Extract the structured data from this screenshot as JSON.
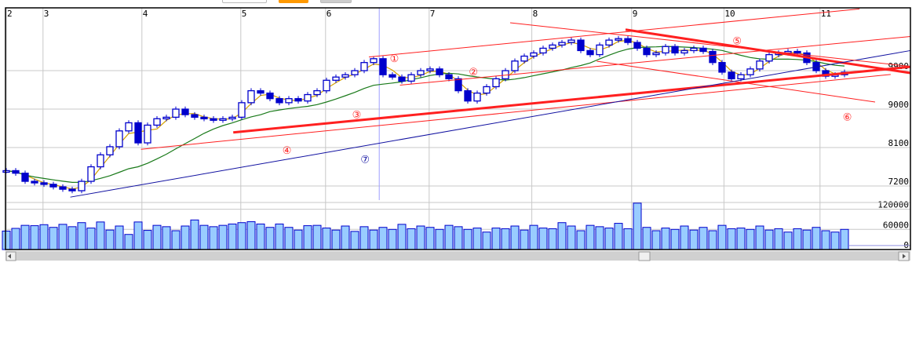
{
  "toolbar": {
    "buttons": [
      {
        "color": "#ffffff"
      },
      {
        "color": "#ff9900"
      },
      {
        "color": "#c0c0c0"
      }
    ]
  },
  "chart_data": {
    "type": "candlestick",
    "price_axis": {
      "ticks": [
        7200,
        8100,
        9000,
        9900
      ],
      "range": [
        6870,
        11370
      ]
    },
    "volume_axis": {
      "ticks": [
        0,
        60000,
        120000
      ],
      "range": [
        0,
        140000
      ]
    },
    "grid": true,
    "month_ticks": [
      {
        "label": "2",
        "at_index": 0
      },
      {
        "label": "3",
        "at_index": 3.9
      },
      {
        "label": "4",
        "at_index": 14.4
      },
      {
        "label": "5",
        "at_index": 24.9
      },
      {
        "label": "6",
        "at_index": 33.9
      },
      {
        "label": "7",
        "at_index": 44.9
      },
      {
        "label": "8",
        "at_index": 55.8
      },
      {
        "label": "9",
        "at_index": 66.4
      },
      {
        "label": "10",
        "at_index": 76.2
      },
      {
        "label": "11",
        "at_index": 86.4
      }
    ],
    "closes": [
      7560,
      7500,
      7310,
      7275,
      7240,
      7180,
      7125,
      7090,
      7310,
      7650,
      7930,
      8120,
      8490,
      8680,
      8210,
      8625,
      8775,
      8810,
      9000,
      8870,
      8810,
      8775,
      8740,
      8775,
      8810,
      9150,
      9430,
      9375,
      9245,
      9150,
      9245,
      9190,
      9340,
      9430,
      9675,
      9750,
      9805,
      9900,
      10090,
      10180,
      9805,
      9750,
      9655,
      9805,
      9900,
      9940,
      9805,
      9710,
      9430,
      9190,
      9375,
      9525,
      9710,
      9900,
      10125,
      10240,
      10315,
      10425,
      10500,
      10560,
      10615,
      10370,
      10275,
      10500,
      10615,
      10650,
      10560,
      10425,
      10275,
      10315,
      10465,
      10315,
      10370,
      10425,
      10350,
      10090,
      9865,
      9710,
      9805,
      9940,
      10125,
      10275,
      10315,
      10350,
      10315,
      10090,
      9900,
      9770,
      9805,
      9865
    ],
    "volumes": [
      55000,
      63000,
      72000,
      71000,
      74000,
      66000,
      75000,
      68000,
      80000,
      64000,
      82000,
      58000,
      70000,
      45000,
      82000,
      57000,
      72000,
      68000,
      56000,
      70000,
      88000,
      72000,
      68000,
      72000,
      76000,
      80000,
      83000,
      76000,
      66000,
      76000,
      66000,
      58000,
      71000,
      72000,
      64000,
      58000,
      70000,
      54000,
      68000,
      58000,
      66000,
      60000,
      75000,
      62000,
      70000,
      66000,
      60000,
      72000,
      68000,
      60000,
      64000,
      52000,
      64000,
      62000,
      70000,
      58000,
      72000,
      64000,
      62000,
      80000,
      70000,
      56000,
      72000,
      68000,
      64000,
      78000,
      62000,
      138000,
      66000,
      56000,
      64000,
      60000,
      70000,
      58000,
      66000,
      56000,
      72000,
      62000,
      64000,
      60000,
      70000,
      58000,
      62000,
      52000,
      62000,
      58000,
      66000,
      56000,
      52000,
      60000
    ],
    "moving_averages": [
      {
        "period": 3,
        "color": "#d4a000"
      },
      {
        "period": 14,
        "color": "#1a7a1a"
      }
    ],
    "trendlines": [
      {
        "label": "①",
        "color": "#ff2020",
        "width": 1,
        "from": [
          38.5,
          10220
        ],
        "to": [
          90.6,
          11345
        ],
        "label_at": [
          41.2,
          10190
        ]
      },
      {
        "label": "②",
        "color": "#ff2020",
        "width": 1,
        "from": [
          41.8,
          9560
        ],
        "to": [
          96,
          10700
        ],
        "label_at": [
          49.6,
          9880
        ]
      },
      {
        "label": "③",
        "color": "#ff2020",
        "width": 3,
        "from": [
          24.1,
          8455
        ],
        "to": [
          96,
          9990
        ],
        "label_at": [
          37.2,
          8880
        ]
      },
      {
        "label": "④",
        "color": "#ff2020",
        "width": 1,
        "from": [
          14.3,
          8060
        ],
        "to": [
          93.9,
          9810
        ],
        "label_at": [
          29.8,
          8050
        ]
      },
      {
        "label": "⑤",
        "color": "#ff2020",
        "width": 3,
        "from": [
          65.75,
          10860
        ],
        "to": [
          96,
          9845
        ],
        "label_at": [
          77.6,
          10610
        ]
      },
      {
        "label": "⑥",
        "color": "#ff2020",
        "width": 1,
        "from": [
          62.7,
          10120
        ],
        "to": [
          92.25,
          9165
        ],
        "label_at": [
          89.3,
          8830
        ]
      },
      {
        "label": "⑦",
        "color": "#1010a0",
        "width": 1,
        "from": [
          6.8,
          6940
        ],
        "to": [
          96,
          10370
        ],
        "label_at": [
          38.1,
          7830
        ]
      },
      {
        "label": "",
        "color": "#ff2020",
        "width": 1,
        "from": [
          53.5,
          11020
        ],
        "to": [
          96,
          10000
        ]
      }
    ],
    "crosshair_index": 39.6,
    "colors": {
      "up": "#0000cc",
      "down": "#0000cc",
      "volume_fill": "#99ccff",
      "volume_stroke": "#0000cc",
      "grid": "#c8c8c8"
    }
  }
}
